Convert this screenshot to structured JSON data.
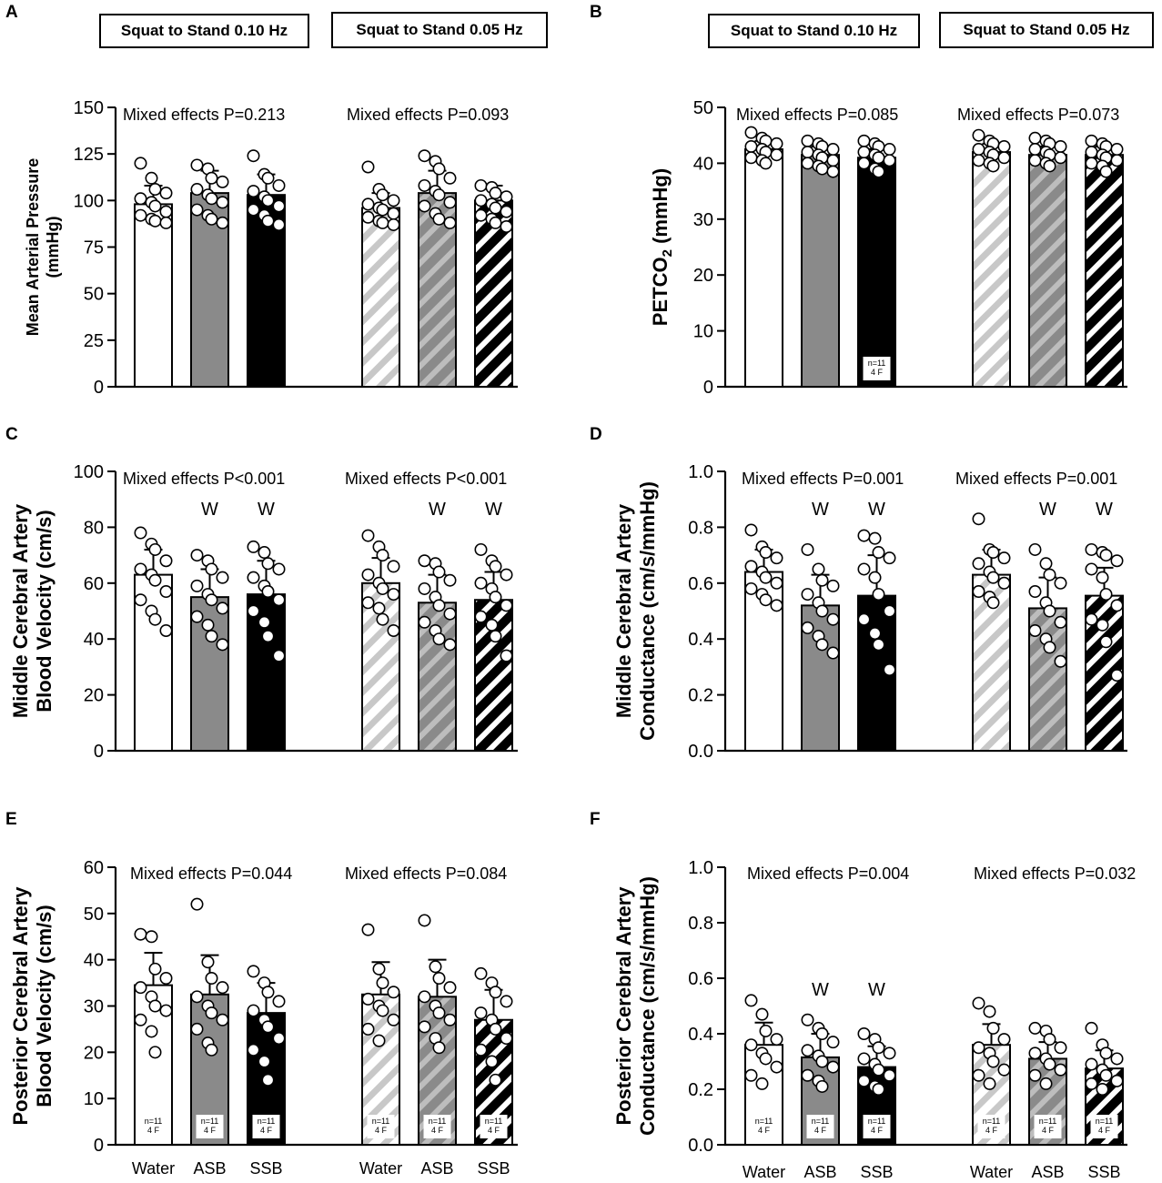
{
  "panel_letters": {
    "A": "A",
    "B": "B",
    "C": "C",
    "D": "D",
    "E": "E",
    "F": "F"
  },
  "condition_labels": {
    "c010": "Squat to Stand 0.10 Hz",
    "c005": "Squat to Stand 0.05 Hz"
  },
  "colors": {
    "water": "#ffffff",
    "asb": "#8a8a8a",
    "ssb": "#000000",
    "stripe_water": "#c8c8c8",
    "stripe_asb": "#b9b9b9",
    "stripe_ssb": "#ffffff"
  },
  "chart_data": [
    {
      "id": "A",
      "type": "bar",
      "ylabel_lines": [
        "Mean Arterial Pressure",
        "(mmHg)"
      ],
      "ylim": [
        0,
        150
      ],
      "ticks": [
        0,
        25,
        50,
        75,
        100,
        125,
        150
      ],
      "tick_labels": [
        "0",
        "25",
        "50",
        "75",
        "100",
        "125",
        "150"
      ],
      "categories": [
        "Water",
        "ASB",
        "SSB"
      ],
      "show_xlabels": false,
      "annotations": [
        "Mixed effects P=0.213",
        "Mixed effects P=0.093"
      ],
      "series": [
        {
          "name": "Squat to Stand 0.10 Hz",
          "values": [
            98,
            104,
            103
          ],
          "sd": [
            10,
            12,
            11
          ],
          "points": [
            [
              120,
              112,
              106,
              104,
              101,
              99,
              97,
              94,
              92,
              90,
              89,
              88
            ],
            [
              119,
              117,
              112,
              110,
              106,
              103,
              101,
              99,
              95,
              92,
              90,
              88
            ],
            [
              124,
              114,
              112,
              108,
              105,
              102,
              100,
              97,
              95,
              92,
              89,
              87
            ]
          ]
        },
        {
          "name": "Squat to Stand 0.05 Hz",
          "values": [
            96,
            104,
            100
          ],
          "sd": [
            8,
            12,
            8
          ],
          "points": [
            [
              118,
              106,
              103,
              100,
              98,
              96,
              95,
              93,
              91,
              89,
              88,
              87
            ],
            [
              124,
              121,
              117,
              112,
              108,
              105,
              103,
              99,
              97,
              93,
              90,
              88
            ],
            [
              108,
              107,
              104,
              102,
              100,
              98,
              96,
              94,
              92,
              90,
              88,
              86
            ]
          ]
        }
      ],
      "n_labels": []
    },
    {
      "id": "B",
      "type": "bar",
      "ylabel_lines": [
        "PETCO2 (mmHg)"
      ],
      "ylim": [
        0,
        50
      ],
      "ticks": [
        0,
        10,
        20,
        30,
        40,
        50
      ],
      "tick_labels": [
        "0",
        "10",
        "20",
        "30",
        "40",
        "50"
      ],
      "categories": [
        "Water",
        "ASB",
        "SSB"
      ],
      "show_xlabels": false,
      "annotations": [
        "Mixed effects P=0.085",
        "Mixed effects P=0.073"
      ],
      "series": [
        {
          "name": "Squat to Stand 0.10 Hz",
          "values": [
            42.5,
            41.5,
            41
          ],
          "sd": [
            1.5,
            1.5,
            1.5
          ],
          "points": [
            [
              45.5,
              44.5,
              44,
              43.5,
              43,
              42.5,
              42,
              41.5,
              41,
              40.5,
              40
            ],
            [
              44,
              43.5,
              43,
              42.5,
              42,
              41.5,
              41,
              40.5,
              40,
              39.5,
              39,
              38.5
            ],
            [
              44,
              43.5,
              43,
              42.5,
              42,
              41.5,
              41,
              40.5,
              40,
              39,
              38.5
            ]
          ]
        },
        {
          "name": "Squat to Stand 0.05 Hz",
          "values": [
            42,
            41.5,
            41.5
          ],
          "sd": [
            1.5,
            1.5,
            1.5
          ],
          "points": [
            [
              45,
              44,
              43.5,
              43,
              42.5,
              42,
              41.5,
              41,
              40.5,
              40,
              39.5
            ],
            [
              44.5,
              44,
              43.5,
              43,
              42.5,
              42,
              41.5,
              41,
              40.5,
              40,
              39.5
            ],
            [
              44,
              43.5,
              43,
              42.5,
              42,
              41.5,
              41,
              40.5,
              40,
              39.5,
              38.5
            ]
          ]
        }
      ],
      "n_labels": [
        {
          "series": 0,
          "bar": 2,
          "line1": "n=11",
          "line2": "4 F"
        }
      ]
    },
    {
      "id": "C",
      "type": "bar",
      "ylabel_lines": [
        "Middle Cerebral Artery",
        "Blood Velocity (cm/s)"
      ],
      "ylim": [
        0,
        100
      ],
      "ticks": [
        0,
        20,
        40,
        60,
        80,
        100
      ],
      "tick_labels": [
        "0",
        "20",
        "40",
        "60",
        "80",
        "100"
      ],
      "categories": [
        "Water",
        "ASB",
        "SSB"
      ],
      "show_xlabels": false,
      "annotations": [
        "Mixed effects P<0.001",
        "Mixed effects P<0.001"
      ],
      "series": [
        {
          "name": "Squat to Stand 0.10 Hz",
          "values": [
            63,
            55,
            56
          ],
          "sd": [
            9,
            10,
            12
          ],
          "points": [
            [
              78,
              74,
              72,
              68,
              65,
              63,
              61,
              57,
              54,
              50,
              47,
              43
            ],
            [
              70,
              68,
              65,
              62,
              59,
              56,
              54,
              51,
              48,
              45,
              41,
              38
            ],
            [
              73,
              71,
              67,
              65,
              62,
              59,
              57,
              54,
              50,
              46,
              41,
              34
            ]
          ]
        },
        {
          "name": "Squat to Stand 0.05 Hz",
          "values": [
            60,
            53,
            54
          ],
          "sd": [
            9,
            10,
            10
          ],
          "points": [
            [
              77,
              73,
              70,
              66,
              63,
              60,
              58,
              56,
              53,
              51,
              47,
              43
            ],
            [
              68,
              67,
              64,
              61,
              58,
              55,
              52,
              49,
              46,
              43,
              40,
              38
            ],
            [
              72,
              68,
              66,
              63,
              60,
              58,
              55,
              52,
              48,
              45,
              41,
              34
            ]
          ]
        }
      ],
      "w_marks": [
        [
          1,
          2
        ],
        [
          1,
          2
        ]
      ],
      "w_label": "W",
      "n_labels": []
    },
    {
      "id": "D",
      "type": "bar",
      "ylabel_lines": [
        "Middle Cerebral Artery",
        "Conductance (cm/s/mmHg)"
      ],
      "ylim": [
        0,
        1
      ],
      "ticks": [
        0,
        0.2,
        0.4,
        0.6,
        0.8,
        1.0
      ],
      "tick_labels": [
        "0.0",
        "0.2",
        "0.4",
        "0.6",
        "0.8",
        "1.0"
      ],
      "categories": [
        "Water",
        "ASB",
        "SSB"
      ],
      "show_xlabels": false,
      "annotations": [
        "Mixed effects P=0.001",
        "Mixed effects P=0.001"
      ],
      "series": [
        {
          "name": "Squat to Stand 0.10 Hz",
          "values": [
            0.64,
            0.52,
            0.555
          ],
          "sd": [
            0.08,
            0.11,
            0.145
          ],
          "points": [
            [
              0.79,
              0.73,
              0.71,
              0.69,
              0.66,
              0.64,
              0.62,
              0.6,
              0.58,
              0.56,
              0.54,
              0.52
            ],
            [
              0.72,
              0.65,
              0.61,
              0.59,
              0.56,
              0.53,
              0.5,
              0.47,
              0.44,
              0.41,
              0.38,
              0.35
            ],
            [
              0.77,
              0.76,
              0.71,
              0.69,
              0.65,
              0.62,
              0.56,
              0.5,
              0.47,
              0.42,
              0.38,
              0.29
            ]
          ]
        },
        {
          "name": "Squat to Stand 0.05 Hz",
          "values": [
            0.63,
            0.51,
            0.555
          ],
          "sd": [
            0.09,
            0.11,
            0.1
          ],
          "points": [
            [
              0.83,
              0.72,
              0.71,
              0.69,
              0.67,
              0.64,
              0.62,
              0.6,
              0.57,
              0.55,
              0.53
            ],
            [
              0.72,
              0.67,
              0.63,
              0.6,
              0.57,
              0.53,
              0.5,
              0.46,
              0.43,
              0.4,
              0.37,
              0.32
            ],
            [
              0.72,
              0.71,
              0.7,
              0.68,
              0.65,
              0.62,
              0.56,
              0.52,
              0.47,
              0.45,
              0.39,
              0.27
            ]
          ]
        }
      ],
      "w_marks": [
        [
          1,
          2
        ],
        [
          1,
          2
        ]
      ],
      "w_label": "W",
      "n_labels": []
    },
    {
      "id": "E",
      "type": "bar",
      "ylabel_lines": [
        "Posterior Cerebral Artery",
        "Blood Velocity (cm/s)"
      ],
      "ylim": [
        0,
        60
      ],
      "ticks": [
        0,
        10,
        20,
        30,
        40,
        50,
        60
      ],
      "tick_labels": [
        "0",
        "10",
        "20",
        "30",
        "40",
        "50",
        "60"
      ],
      "categories": [
        "Water",
        "ASB",
        "SSB"
      ],
      "show_xlabels": true,
      "annotations": [
        "Mixed effects P=0.044",
        "Mixed effects P=0.084"
      ],
      "series": [
        {
          "name": "Squat to Stand 0.10 Hz",
          "values": [
            34.5,
            32.5,
            28.5
          ],
          "sd": [
            7,
            8.5,
            6.5
          ],
          "points": [
            [
              45.5,
              45,
              38,
              36,
              34,
              32,
              30,
              29,
              27,
              24.5,
              20
            ],
            [
              52,
              39.5,
              36,
              34,
              32,
              30,
              28.5,
              27,
              25,
              22,
              20.5
            ],
            [
              37.5,
              35,
              33,
              31,
              29,
              27,
              25.5,
              23,
              20.5,
              18,
              14
            ]
          ]
        },
        {
          "name": "Squat to Stand 0.05 Hz",
          "values": [
            32.5,
            32,
            27
          ],
          "sd": [
            7,
            8,
            6.5
          ],
          "points": [
            [
              46.5,
              38,
              35,
              33,
              31.5,
              30,
              29,
              27,
              25,
              22.5
            ],
            [
              48.5,
              38.5,
              36,
              34,
              32,
              30,
              28.5,
              27,
              25.5,
              23,
              21
            ],
            [
              37,
              35,
              33,
              31,
              28.5,
              27,
              25,
              23,
              20.5,
              18,
              14
            ]
          ]
        }
      ],
      "n_labels": [
        {
          "series": 0,
          "bar": 0,
          "line1": "n=11",
          "line2": "4 F"
        },
        {
          "series": 0,
          "bar": 1,
          "line1": "n=11",
          "line2": "4 F"
        },
        {
          "series": 0,
          "bar": 2,
          "line1": "n=11",
          "line2": "4 F"
        },
        {
          "series": 1,
          "bar": 0,
          "line1": "n=11",
          "line2": "4 F"
        },
        {
          "series": 1,
          "bar": 1,
          "line1": "n=11",
          "line2": "4 F"
        },
        {
          "series": 1,
          "bar": 2,
          "line1": "n=11",
          "line2": "4 F"
        }
      ]
    },
    {
      "id": "F",
      "type": "bar",
      "ylabel_lines": [
        "Posterior Cerebral Artery",
        "Conductance (cm/s/mmHg)"
      ],
      "ylim": [
        0,
        1
      ],
      "ticks": [
        0,
        0.2,
        0.4,
        0.6,
        0.8,
        1.0
      ],
      "tick_labels": [
        "0.0",
        "0.2",
        "0.4",
        "0.6",
        "0.8",
        "1.0"
      ],
      "categories": [
        "Water",
        "ASB",
        "SSB"
      ],
      "show_xlabels": true,
      "annotations": [
        "Mixed effects P=0.004",
        "Mixed effects P=0.032"
      ],
      "series": [
        {
          "name": "Squat to Stand 0.10 Hz",
          "values": [
            0.36,
            0.315,
            0.28
          ],
          "sd": [
            0.08,
            0.085,
            0.075
          ],
          "points": [
            [
              0.52,
              0.47,
              0.41,
              0.38,
              0.36,
              0.33,
              0.31,
              0.28,
              0.25,
              0.22
            ],
            [
              0.45,
              0.42,
              0.4,
              0.37,
              0.34,
              0.32,
              0.3,
              0.28,
              0.25,
              0.23,
              0.21
            ],
            [
              0.4,
              0.38,
              0.35,
              0.33,
              0.31,
              0.29,
              0.27,
              0.25,
              0.23,
              0.21,
              0.2
            ]
          ]
        },
        {
          "name": "Squat to Stand 0.05 Hz",
          "values": [
            0.36,
            0.31,
            0.275
          ],
          "sd": [
            0.075,
            0.06,
            0.065
          ],
          "points": [
            [
              0.51,
              0.48,
              0.42,
              0.38,
              0.35,
              0.33,
              0.3,
              0.27,
              0.25,
              0.22
            ],
            [
              0.42,
              0.41,
              0.38,
              0.35,
              0.33,
              0.31,
              0.29,
              0.27,
              0.25,
              0.22
            ],
            [
              0.42,
              0.36,
              0.33,
              0.31,
              0.29,
              0.27,
              0.25,
              0.23,
              0.22,
              0.2
            ]
          ]
        }
      ],
      "w_marks": [
        [
          1,
          2
        ],
        []
      ],
      "w_label": "W",
      "n_labels": [
        {
          "series": 0,
          "bar": 0,
          "line1": "n=11",
          "line2": "4 F"
        },
        {
          "series": 0,
          "bar": 1,
          "line1": "n=11",
          "line2": "4 F"
        },
        {
          "series": 0,
          "bar": 2,
          "line1": "n=11",
          "line2": "4 F"
        },
        {
          "series": 1,
          "bar": 0,
          "line1": "n=11",
          "line2": "4 F"
        },
        {
          "series": 1,
          "bar": 1,
          "line1": "n=11",
          "line2": "4 F"
        },
        {
          "series": 1,
          "bar": 2,
          "line1": "n=11",
          "line2": "4 F"
        }
      ]
    }
  ]
}
